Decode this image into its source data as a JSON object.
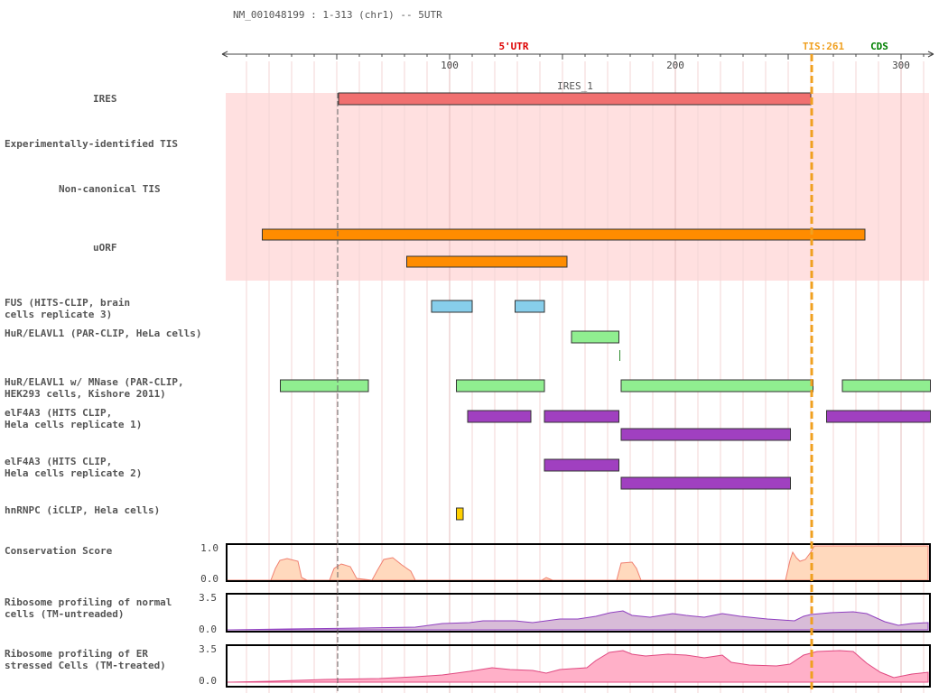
{
  "title": "NM_001048199 : 1-313 (chr1) -- 5UTR",
  "ruler": {
    "region_label": "5'UTR",
    "tis_label": "TIS:261",
    "cds_label": "CDS",
    "ticks": [
      "100",
      "200",
      "300"
    ],
    "start": 1,
    "end": 313,
    "tis_position": 261
  },
  "tracks": [
    {
      "id": "ires",
      "label": "IRES"
    },
    {
      "id": "exp_tis",
      "label": "Experimentally-identified TIS"
    },
    {
      "id": "noncanon_tis",
      "label": "Non-canonical TIS"
    },
    {
      "id": "uorf",
      "label": "uORF"
    },
    {
      "id": "fus",
      "label": "FUS (HITS-CLIP, brain\ncells replicate 3)"
    },
    {
      "id": "hur",
      "label": "HuR/ELAVL1 (PAR-CLIP, HeLa cells)"
    },
    {
      "id": "hur_mnase",
      "label": "HuR/ELAVL1 w/ MNase (PAR-CLIP,\nHEK293 cells, Kishore 2011)"
    },
    {
      "id": "eif4a3_1",
      "label": "elF4A3 (HITS CLIP,\nHela cells replicate 1)"
    },
    {
      "id": "eif4a3_2",
      "label": "elF4A3 (HITS CLIP,\nHela cells replicate 2)"
    },
    {
      "id": "hnrnpc",
      "label": "hnRNPC (iCLIP, Hela cells)"
    },
    {
      "id": "conservation",
      "label": "Conservation Score"
    },
    {
      "id": "ribo_normal",
      "label": "Ribosome profiling of normal\ncells (TM-untreaded)"
    },
    {
      "id": "ribo_er",
      "label": "Ribosome profiling of ER\nstressed Cells (TM-treated)"
    }
  ],
  "ires_feature": {
    "name": "IRES_1",
    "start": 51,
    "end": 261
  },
  "features": {
    "uorf": [
      [
        17,
        284
      ],
      [
        81,
        152
      ]
    ],
    "fus": [
      [
        92,
        110
      ],
      [
        129,
        142
      ]
    ],
    "hur": [
      [
        154,
        175
      ]
    ],
    "hur_mnase": [
      [
        25,
        64
      ],
      [
        103,
        142
      ],
      [
        176,
        261
      ],
      [
        274,
        313
      ]
    ],
    "eif4a3_1_row1": [
      [
        108,
        136
      ],
      [
        142,
        175
      ],
      [
        267,
        313
      ]
    ],
    "eif4a3_1_row2": [
      [
        176,
        251
      ]
    ],
    "eif4a3_2_row1": [
      [
        142,
        175
      ]
    ],
    "eif4a3_2_row2": [
      [
        176,
        251
      ]
    ],
    "hnrnpc": [
      [
        103,
        106
      ]
    ]
  },
  "score_axes": {
    "conservation": {
      "max": "1.0",
      "min": "0.0"
    },
    "ribo_normal": {
      "max": "3.5",
      "min": "0.0"
    },
    "ribo_er": {
      "max": "3.5",
      "min": "0.0"
    }
  },
  "colors": {
    "utr_label": "#dd0000",
    "tis": "#f0a020",
    "cds_label": "#008000",
    "highlight_band": "#ffe0e0",
    "ires": "#f07070",
    "uorf": "#ff8c00",
    "fus": "#87ceeb",
    "hur": "#90ee90",
    "eif4a3": "#a040c0",
    "hnrnpc": "#ffd000",
    "conservation_fill": "#ffd9bd",
    "conservation_line": "#f08070",
    "ribo_normal_fill": "#d8bcd8",
    "ribo_normal_line": "#9040c0",
    "ribo_er_fill": "#ffb0c8",
    "ribo_er_line": "#e04880"
  }
}
